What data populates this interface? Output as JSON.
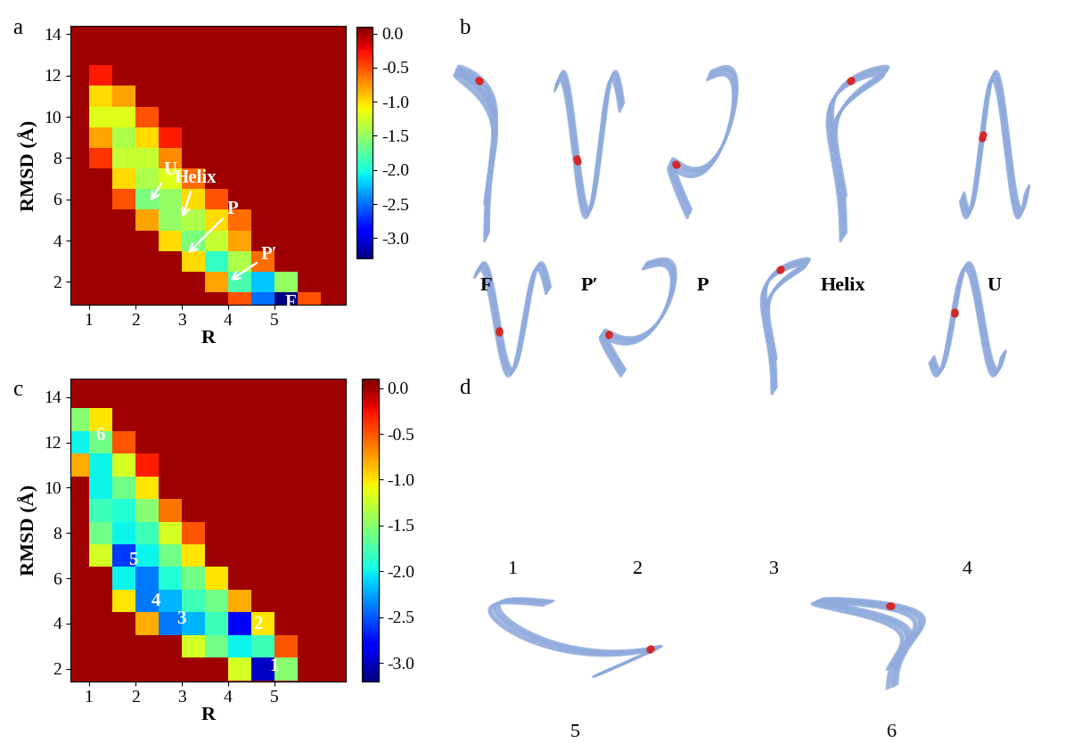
{
  "chart_data": [
    {
      "type": "heatmap",
      "panel_label": "a",
      "xlabel": "R",
      "ylabel": "RMSD (Å)",
      "xlim": [
        0.6,
        6.55
      ],
      "ylim": [
        0.9,
        14.4
      ],
      "xticks": [
        1,
        2,
        3,
        4,
        5
      ],
      "yticks": [
        2,
        4,
        6,
        8,
        10,
        12,
        14
      ],
      "color": "jet",
      "x_edges": [
        0.5,
        1.0,
        1.5,
        2.0,
        2.5,
        3.0,
        3.5,
        4.0,
        4.5,
        5.0,
        5.5,
        6.0,
        6.5
      ],
      "y_edges": [
        0.5,
        1.5,
        2.5,
        3.5,
        4.5,
        5.5,
        6.5,
        7.5,
        8.5,
        9.5,
        10.5,
        11.5,
        12.5,
        13.5,
        14.5
      ],
      "cells": [
        [
          0,
          0,
          0,
          0,
          0,
          0,
          0,
          -0.5,
          -2.5,
          -3.3,
          -0.5,
          0
        ],
        [
          0,
          0,
          0,
          0,
          0,
          0,
          -0.8,
          -1.8,
          -2.2,
          -1.5,
          0,
          0
        ],
        [
          0,
          0,
          0,
          0,
          0,
          -1.0,
          -1.9,
          -1.4,
          -0.6,
          0,
          0,
          0
        ],
        [
          0,
          0,
          0,
          0,
          -1.0,
          -1.6,
          -1.3,
          -0.8,
          0,
          0,
          0,
          0
        ],
        [
          0,
          0,
          0,
          -0.8,
          -1.5,
          -1.4,
          -1.0,
          -0.6,
          0,
          0,
          0,
          0
        ],
        [
          0,
          0,
          -0.5,
          -1.6,
          -1.5,
          -1.0,
          -0.5,
          0,
          0,
          0,
          0,
          0
        ],
        [
          0,
          0,
          -1.0,
          -1.4,
          -1.2,
          -0.6,
          0,
          0,
          0,
          0,
          0,
          0
        ],
        [
          0,
          -0.4,
          -1.3,
          -1.3,
          -0.7,
          0,
          0,
          0,
          0,
          0,
          0,
          0
        ],
        [
          0,
          -0.8,
          -1.4,
          -1.0,
          -0.3,
          0,
          0,
          0,
          0,
          0,
          0,
          0
        ],
        [
          0,
          -1.2,
          -1.2,
          -0.5,
          0,
          0,
          0,
          0,
          0,
          0,
          0,
          0
        ],
        [
          0,
          -1.0,
          -0.8,
          0,
          0,
          0,
          0,
          0,
          0,
          0,
          0,
          0
        ],
        [
          0,
          -0.3,
          0,
          0,
          0,
          0,
          0,
          0,
          0,
          0,
          0,
          0
        ],
        [
          0,
          0,
          0,
          0,
          0,
          0,
          0,
          0,
          0,
          0,
          0,
          0
        ],
        [
          0,
          0,
          0,
          0,
          0,
          0,
          0,
          0,
          0,
          0,
          0,
          0
        ]
      ],
      "colorbar_range": [
        -3.3,
        0.1
      ],
      "colorbar_ticks": [
        0.0,
        -0.5,
        -1.0,
        -1.5,
        -2.0,
        -2.5,
        -3.0
      ],
      "arrow_labels": [
        {
          "text": "U",
          "x": 2.3,
          "y": 5.8
        },
        {
          "text": "Helix",
          "x": 3.0,
          "y": 5.0
        },
        {
          "text": "P",
          "x": 3.1,
          "y": 3.3
        },
        {
          "text": "P′",
          "x": 4.0,
          "y": 2.0
        }
      ],
      "point_labels": [
        {
          "text": "F",
          "x": 5.35,
          "y": 1.0
        }
      ]
    },
    {
      "type": "heatmap",
      "panel_label": "c",
      "xlabel": "R",
      "ylabel": "RMSD (Å)",
      "xlim": [
        0.6,
        6.55
      ],
      "ylim": [
        1.45,
        14.8
      ],
      "xticks": [
        1,
        2,
        3,
        4,
        5
      ],
      "yticks": [
        2,
        4,
        6,
        8,
        10,
        12,
        14
      ],
      "color": "jet",
      "x_edges": [
        0.5,
        1.0,
        1.5,
        2.0,
        2.5,
        3.0,
        3.5,
        4.0,
        4.5,
        5.0,
        5.5,
        6.0,
        6.5
      ],
      "y_edges": [
        0.5,
        1.5,
        2.5,
        3.5,
        4.5,
        5.5,
        6.5,
        7.5,
        8.5,
        9.5,
        10.5,
        11.5,
        12.5,
        13.5,
        14.5
      ],
      "cells": [
        [
          0,
          0,
          0,
          0,
          0,
          0,
          0,
          0,
          0,
          0,
          0,
          0
        ],
        [
          0,
          0,
          0,
          0,
          0,
          0,
          0,
          -1.2,
          -3.0,
          -1.5,
          0,
          0
        ],
        [
          0,
          0,
          0,
          0,
          0,
          -1.2,
          -1.6,
          -2.0,
          -1.8,
          -0.5,
          0,
          0
        ],
        [
          0,
          0,
          0,
          -0.8,
          -2.4,
          -2.2,
          -1.8,
          -2.8,
          -1.0,
          0,
          0,
          0
        ],
        [
          0,
          0,
          -1.0,
          -2.4,
          -2.2,
          -1.8,
          -1.6,
          -0.8,
          0,
          0,
          0,
          0
        ],
        [
          0,
          0,
          -2.0,
          -2.4,
          -1.9,
          -1.6,
          -1.0,
          0,
          0,
          0,
          0,
          0
        ],
        [
          0,
          -1.2,
          -2.6,
          -2.0,
          -1.6,
          -1.0,
          0,
          0,
          0,
          0,
          0,
          0
        ],
        [
          0,
          -1.6,
          -2.0,
          -1.8,
          -1.2,
          -0.5,
          0,
          0,
          0,
          0,
          0,
          0
        ],
        [
          0,
          -1.8,
          -1.9,
          -1.5,
          -0.6,
          0,
          0,
          0,
          0,
          0,
          0,
          0
        ],
        [
          0,
          -2.0,
          -1.6,
          -1.0,
          0,
          0,
          0,
          0,
          0,
          0,
          0,
          0
        ],
        [
          -0.8,
          -2.0,
          -1.2,
          -0.3,
          0,
          0,
          0,
          0,
          0,
          0,
          0,
          0
        ],
        [
          -2.0,
          -1.6,
          -0.5,
          0,
          0,
          0,
          0,
          0,
          0,
          0,
          0,
          0
        ],
        [
          -1.5,
          -1.0,
          0,
          0,
          0,
          0,
          0,
          0,
          0,
          0,
          0,
          0
        ],
        [
          0,
          0,
          0,
          0,
          0,
          0,
          0,
          0,
          0,
          0,
          0,
          0
        ]
      ],
      "colorbar_range": [
        -3.2,
        0.1
      ],
      "colorbar_ticks": [
        0.0,
        -0.5,
        -1.0,
        -1.5,
        -2.0,
        -2.5,
        -3.0
      ],
      "arrow_labels": [],
      "point_labels": [
        {
          "text": "1",
          "x": 5.0,
          "y": 2.1
        },
        {
          "text": "2",
          "x": 4.65,
          "y": 3.95
        },
        {
          "text": "3",
          "x": 3.0,
          "y": 4.2
        },
        {
          "text": "4",
          "x": 2.45,
          "y": 5.0
        },
        {
          "text": "5",
          "x": 1.95,
          "y": 6.8
        },
        {
          "text": "6",
          "x": 1.25,
          "y": 12.3
        }
      ]
    }
  ],
  "structure_panels": [
    {
      "panel_label": "b",
      "labels": [
        "F",
        "P′",
        "P",
        "Helix",
        "U"
      ]
    },
    {
      "panel_label": "d",
      "labels": [
        "1",
        "2",
        "3",
        "4",
        "5",
        "6"
      ]
    }
  ]
}
